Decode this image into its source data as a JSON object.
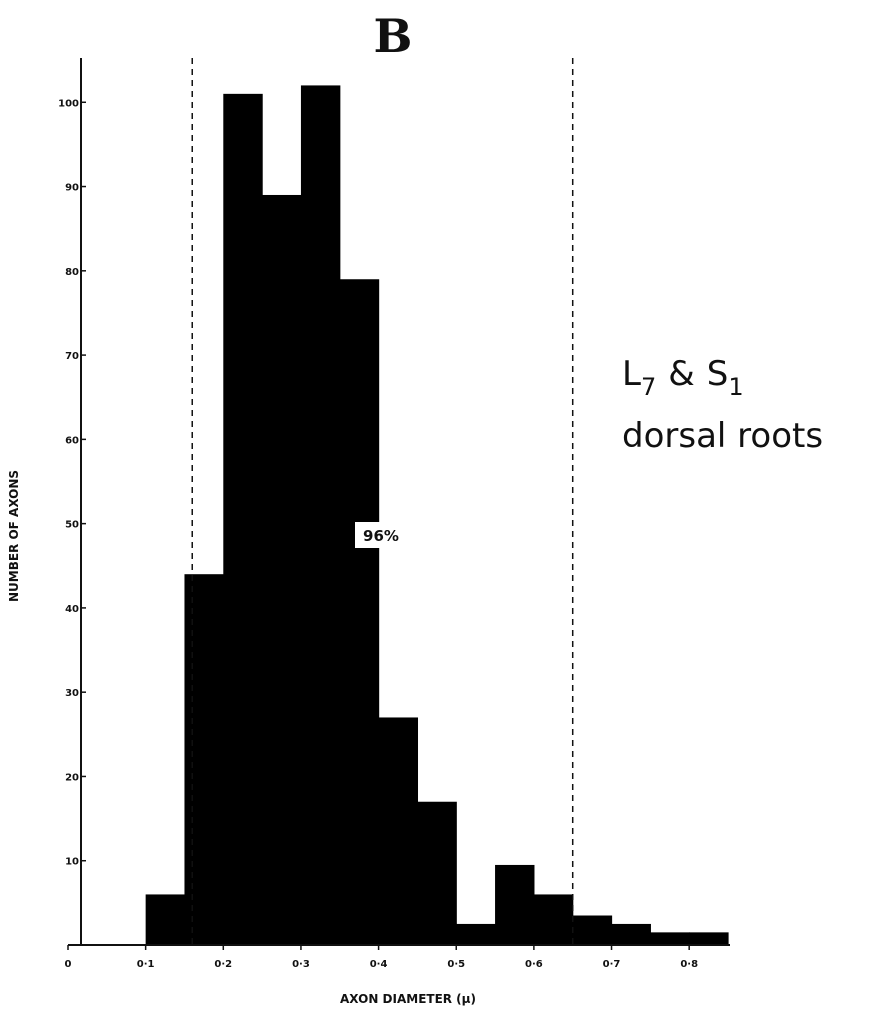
{
  "chart_data": {
    "type": "bar",
    "panel_label": "B",
    "xlabel": "AXON DIAMETER (μ)",
    "ylabel": "NUMBER OF AXONS",
    "xlim": [
      0,
      0.85
    ],
    "ylim": [
      0,
      110
    ],
    "bin_width": 0.05,
    "bins": [
      {
        "start": 0.1,
        "end": 0.15,
        "value": 6
      },
      {
        "start": 0.15,
        "end": 0.2,
        "value": 44
      },
      {
        "start": 0.2,
        "end": 0.25,
        "value": 101
      },
      {
        "start": 0.25,
        "end": 0.3,
        "value": 89
      },
      {
        "start": 0.3,
        "end": 0.35,
        "value": 102
      },
      {
        "start": 0.35,
        "end": 0.4,
        "value": 79
      },
      {
        "start": 0.4,
        "end": 0.45,
        "value": 27
      },
      {
        "start": 0.45,
        "end": 0.5,
        "value": 17
      },
      {
        "start": 0.5,
        "end": 0.55,
        "value": 2.5
      },
      {
        "start": 0.55,
        "end": 0.6,
        "value": 9.5
      },
      {
        "start": 0.6,
        "end": 0.65,
        "value": 6
      },
      {
        "start": 0.65,
        "end": 0.7,
        "value": 3.5
      },
      {
        "start": 0.7,
        "end": 0.75,
        "value": 2.5
      },
      {
        "start": 0.75,
        "end": 0.8,
        "value": 1.5
      },
      {
        "start": 0.8,
        "end": 0.85,
        "value": 1.5
      }
    ],
    "x_ticks": [
      {
        "value": 0,
        "label": "0"
      },
      {
        "value": 0.1,
        "label": "0·1"
      },
      {
        "value": 0.2,
        "label": "0·2"
      },
      {
        "value": 0.3,
        "label": "0·3"
      },
      {
        "value": 0.4,
        "label": "0·4"
      },
      {
        "value": 0.5,
        "label": "0·5"
      },
      {
        "value": 0.6,
        "label": "0·6"
      },
      {
        "value": 0.7,
        "label": "0·7"
      },
      {
        "value": 0.8,
        "label": "0·8"
      }
    ],
    "y_ticks": [
      {
        "value": 10,
        "label": "10"
      },
      {
        "value": 20,
        "label": "20"
      },
      {
        "value": 30,
        "label": "30"
      },
      {
        "value": 40,
        "label": "40"
      },
      {
        "value": 50,
        "label": "50"
      },
      {
        "value": 60,
        "label": "60"
      },
      {
        "value": 70,
        "label": "70"
      },
      {
        "value": 80,
        "label": "80"
      },
      {
        "value": 90,
        "label": "90"
      },
      {
        "value": 100,
        "label": "100"
      }
    ],
    "reference_lines": [
      0.16,
      0.65
    ],
    "range_annotation": "96%",
    "annotation": {
      "l_letter": "L",
      "l_sub": "7",
      "amp": "&",
      "s_letter": "S",
      "s_sub": "1",
      "line2": "dorsal roots"
    },
    "grid": false,
    "colors": {
      "bars": "#000000",
      "axes": "#111111",
      "background": "#ffffff"
    }
  }
}
